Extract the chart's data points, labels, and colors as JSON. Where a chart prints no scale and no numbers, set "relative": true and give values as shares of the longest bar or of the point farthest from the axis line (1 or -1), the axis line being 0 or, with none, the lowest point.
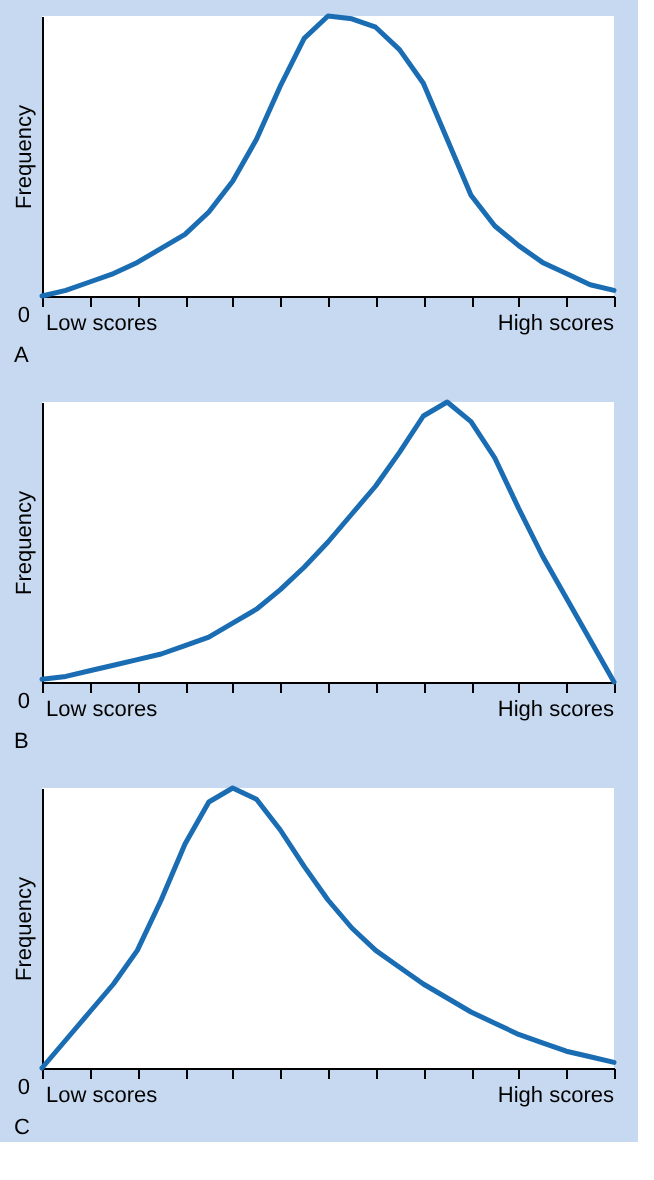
{
  "chart_data": [
    {
      "type": "line",
      "relative": true,
      "ylabel": "Frequency",
      "color": "#1a6db3",
      "annotations": [
        "0",
        "Low scores",
        "High scores",
        "A"
      ],
      "categories": [
        null,
        null,
        null,
        null,
        null,
        null,
        null,
        null,
        null,
        null,
        null,
        null,
        null,
        null,
        null,
        null,
        null,
        null,
        null,
        null,
        null,
        null,
        null,
        null,
        null
      ],
      "values": [
        0.0,
        0.02,
        0.05,
        0.08,
        0.12,
        0.17,
        0.22,
        0.3,
        0.41,
        0.56,
        0.75,
        0.92,
        1.0,
        0.99,
        0.96,
        0.88,
        0.76,
        0.56,
        0.36,
        0.25,
        0.18,
        0.12,
        0.08,
        0.04,
        0.02
      ]
    },
    {
      "type": "line",
      "relative": true,
      "ylabel": "Frequency",
      "color": "#1a6db3",
      "annotations": [
        "0",
        "Low scores",
        "High scores",
        "B"
      ],
      "categories": [
        null,
        null,
        null,
        null,
        null,
        null,
        null,
        null,
        null,
        null,
        null,
        null,
        null,
        null,
        null,
        null,
        null,
        null,
        null,
        null,
        null,
        null,
        null,
        null,
        null
      ],
      "values": [
        0.01,
        0.02,
        0.04,
        0.06,
        0.08,
        0.1,
        0.13,
        0.16,
        0.21,
        0.26,
        0.33,
        0.41,
        0.5,
        0.6,
        0.7,
        0.82,
        0.95,
        1.0,
        0.93,
        0.8,
        0.62,
        0.45,
        0.3,
        0.15,
        0.0
      ]
    },
    {
      "type": "line",
      "relative": true,
      "ylabel": "Frequency",
      "color": "#1a6db3",
      "annotations": [
        "0",
        "Low scores",
        "High scores",
        "C"
      ],
      "categories": [
        null,
        null,
        null,
        null,
        null,
        null,
        null,
        null,
        null,
        null,
        null,
        null,
        null,
        null,
        null,
        null,
        null,
        null,
        null,
        null,
        null,
        null,
        null,
        null,
        null
      ],
      "values": [
        0.0,
        0.1,
        0.2,
        0.3,
        0.42,
        0.6,
        0.8,
        0.95,
        1.0,
        0.96,
        0.85,
        0.72,
        0.6,
        0.5,
        0.42,
        0.36,
        0.3,
        0.25,
        0.2,
        0.16,
        0.12,
        0.09,
        0.06,
        0.04,
        0.02
      ]
    }
  ]
}
